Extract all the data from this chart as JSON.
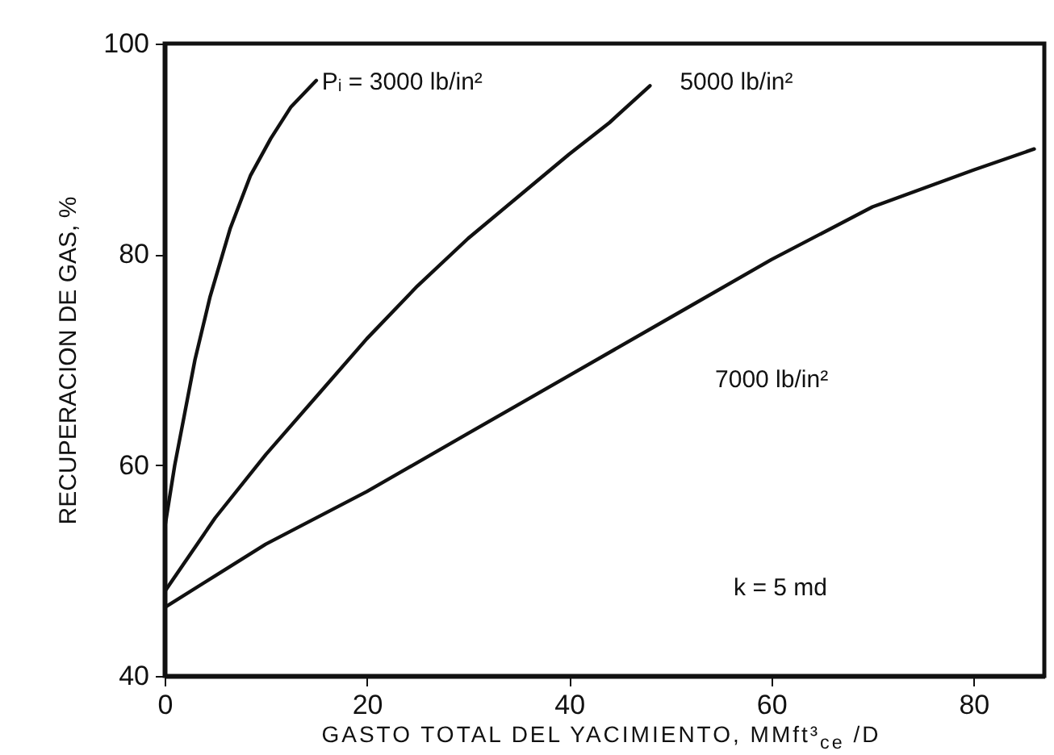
{
  "chart_data": {
    "type": "line",
    "xlabel": "GASTO TOTAL DEL YACIMIENTO, MMft³$_{ce}$ /D",
    "ylabel": "RECUPERACION DE GAS, %",
    "xlim": [
      0,
      87
    ],
    "xticks": [
      0,
      20,
      40,
      60,
      80
    ],
    "ylim": [
      40,
      100
    ],
    "yticks": [
      40,
      60,
      80,
      100
    ],
    "grid": false,
    "marker": "none",
    "line_style": "solid",
    "series": [
      {
        "color": "#111111",
        "x": [
          0,
          1,
          2,
          3,
          4.5,
          6.5,
          8.5,
          10.5,
          12.5,
          15
        ],
        "values": [
          54,
          60,
          65,
          70,
          76,
          82.5,
          87.5,
          91,
          94,
          96.5
        ]
      },
      {
        "color": "#111111",
        "x": [
          0,
          5,
          10,
          15,
          20,
          25,
          30,
          35,
          40,
          44,
          48
        ],
        "values": [
          48,
          55,
          61,
          66.5,
          72,
          77,
          81.5,
          85.5,
          89.5,
          92.5,
          96
        ]
      },
      {
        "color": "#111111",
        "x": [
          0,
          5,
          10,
          20,
          30,
          40,
          50,
          60,
          70,
          80,
          86
        ],
        "values": [
          46.5,
          49.5,
          52.5,
          57.5,
          63,
          68.5,
          74,
          79.5,
          84.5,
          88,
          90
        ]
      }
    ],
    "annotations": [
      "Pᵢ = 3000 lb/in²",
      "5000 lb/in²",
      "7000 lb/in²",
      "k = 5 md"
    ]
  }
}
